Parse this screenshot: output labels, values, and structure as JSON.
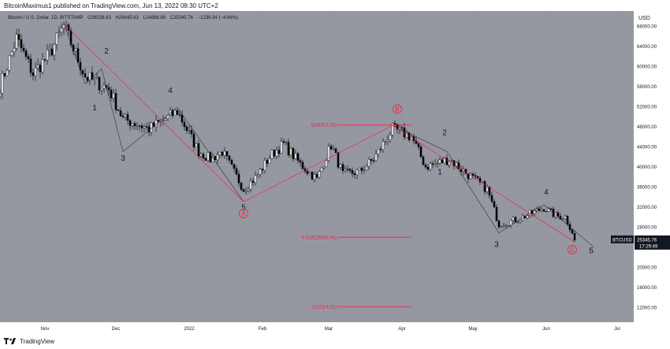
{
  "header": {
    "text": "BitcoinMaximus1 published on TradingView.com, Jun 13, 2022 08:30 UTC+2"
  },
  "footer": {
    "brand": "TradingView"
  },
  "colors": {
    "bg": "#9598a1",
    "up": "#ffffff",
    "down": "#000000",
    "red": "#ff1744",
    "grid": "#8c8f98",
    "axis": "#ffffff"
  },
  "chart_data": {
    "type": "candlestick",
    "title_line": {
      "symbol": "Bitcoin / U.S. Dollar, 1D, BITSTAMP",
      "open": "O26538.63",
      "high": "H26845.63",
      "low": "L24888.88",
      "close": "C25345.76",
      "change": "−1239.34 (−4.66%)"
    },
    "currency": "USD",
    "ylim": [
      9000,
      71000
    ],
    "y_ticks": [
      68000,
      64000,
      60000,
      56000,
      52000,
      48000,
      44000,
      40000,
      36000,
      32000,
      28000,
      24000,
      20000,
      16000,
      12000
    ],
    "y_tick_labels": [
      "68000.00",
      "64000.00",
      "60000.00",
      "56000.00",
      "52000.00",
      "48000.00",
      "44000.00",
      "40000.00",
      "36000.00",
      "32000.00",
      "28000.00",
      "24000.00",
      "20000.00",
      "16000.00",
      "12000.00"
    ],
    "x_range": [
      "2021-10-13",
      "2022-07-08"
    ],
    "x_ticks": [
      {
        "date": "2021-11-01",
        "label": "Nov"
      },
      {
        "date": "2021-12-01",
        "label": "Dec"
      },
      {
        "date": "2022-01-01",
        "label": "2022"
      },
      {
        "date": "2022-02-01",
        "label": "Feb"
      },
      {
        "date": "2022-03-01",
        "label": "Mar"
      },
      {
        "date": "2022-04-01",
        "label": "Apr"
      },
      {
        "date": "2022-05-01",
        "label": "May"
      },
      {
        "date": "2022-06-01",
        "label": "Jun"
      },
      {
        "date": "2022-07-01",
        "label": "Jul"
      }
    ],
    "price_path": [
      [
        "2021-10-13",
        56000
      ],
      [
        "2021-10-20",
        65500
      ],
      [
        "2021-10-27",
        58500
      ],
      [
        "2021-11-03",
        62500
      ],
      [
        "2021-11-09",
        68000
      ],
      [
        "2021-11-18",
        58000
      ],
      [
        "2021-11-28",
        55500
      ],
      [
        "2021-12-04",
        49500
      ],
      [
        "2021-12-10",
        48500
      ],
      [
        "2021-12-15",
        47500
      ],
      [
        "2021-12-27",
        51000
      ],
      [
        "2022-01-05",
        43000
      ],
      [
        "2022-01-10",
        41500
      ],
      [
        "2022-01-15",
        43000
      ],
      [
        "2022-01-24",
        35500
      ],
      [
        "2022-01-29",
        37800
      ],
      [
        "2022-02-05",
        42500
      ],
      [
        "2022-02-10",
        44500
      ],
      [
        "2022-02-17",
        40500
      ],
      [
        "2022-02-24",
        37500
      ],
      [
        "2022-03-02",
        44300
      ],
      [
        "2022-03-07",
        38500
      ],
      [
        "2022-03-14",
        39000
      ],
      [
        "2022-03-20",
        41500
      ],
      [
        "2022-03-28",
        47500
      ],
      [
        "2022-04-05",
        46000
      ],
      [
        "2022-04-11",
        40000
      ],
      [
        "2022-04-15",
        40500
      ],
      [
        "2022-04-21",
        41500
      ],
      [
        "2022-04-30",
        38000
      ],
      [
        "2022-05-07",
        35500
      ],
      [
        "2022-05-12",
        28500
      ],
      [
        "2022-05-20",
        29500
      ],
      [
        "2022-05-31",
        31800
      ],
      [
        "2022-06-05",
        30200
      ],
      [
        "2022-06-09",
        30000
      ],
      [
        "2022-06-12",
        27000
      ],
      [
        "2022-06-13",
        25345
      ]
    ],
    "fib_levels": [
      {
        "label": "0(48317.20)",
        "price": 48317.2
      },
      {
        "label": "0.618(25943.94)",
        "price": 25943.94
      },
      {
        "label": "1(12114.51)",
        "price": 12114.51
      }
    ],
    "wave_labels": [
      {
        "text": "2",
        "date": "2021-11-27",
        "price": 62500,
        "color": "black"
      },
      {
        "text": "1",
        "date": "2021-11-22",
        "price": 51200,
        "color": "black"
      },
      {
        "text": "4",
        "date": "2021-12-24",
        "price": 54700,
        "color": "black"
      },
      {
        "text": "3",
        "date": "2021-12-04",
        "price": 41200,
        "color": "black"
      },
      {
        "text": "5",
        "date": "2022-01-24",
        "price": 31400,
        "color": "black"
      },
      {
        "text": "A",
        "date": "2022-01-24",
        "price": 30200,
        "color": "red",
        "circle": true
      },
      {
        "text": "B",
        "date": "2022-03-30",
        "price": 51000,
        "color": "red",
        "circle": true
      },
      {
        "text": "2",
        "date": "2022-04-19",
        "price": 46300,
        "color": "black"
      },
      {
        "text": "1",
        "date": "2022-04-17",
        "price": 38400,
        "color": "black"
      },
      {
        "text": "3",
        "date": "2022-05-11",
        "price": 24000,
        "color": "black"
      },
      {
        "text": "4",
        "date": "2022-06-01",
        "price": 34400,
        "color": "black"
      },
      {
        "text": "C",
        "date": "2022-06-12",
        "price": 23000,
        "color": "red",
        "circle": true
      },
      {
        "text": "5",
        "date": "2022-06-20",
        "price": 22700,
        "color": "black"
      }
    ],
    "wave_paths_black": [
      [
        [
          "2021-11-09",
          68500
        ],
        [
          "2021-11-18",
          56500
        ],
        [
          "2021-11-25",
          59500
        ],
        [
          "2021-12-04",
          43000
        ],
        [
          "2021-12-27",
          51800
        ],
        [
          "2022-01-24",
          33000
        ]
      ],
      [
        [
          "2022-03-28",
          48200
        ],
        [
          "2022-04-20",
          43000
        ],
        [
          "2022-05-12",
          26800
        ],
        [
          "2022-05-31",
          32400
        ],
        [
          "2022-06-21",
          24000
        ]
      ]
    ],
    "wave_paths_red": [
      [
        [
          "2021-11-09",
          68500
        ],
        [
          "2022-01-24",
          33000
        ],
        [
          "2022-03-28",
          48200
        ],
        [
          "2022-06-13",
          25000
        ]
      ]
    ],
    "last_price": {
      "symbol": "BTCUSD",
      "value": "25345.76",
      "countdown": "17:29:49",
      "price": 25345.76
    }
  }
}
